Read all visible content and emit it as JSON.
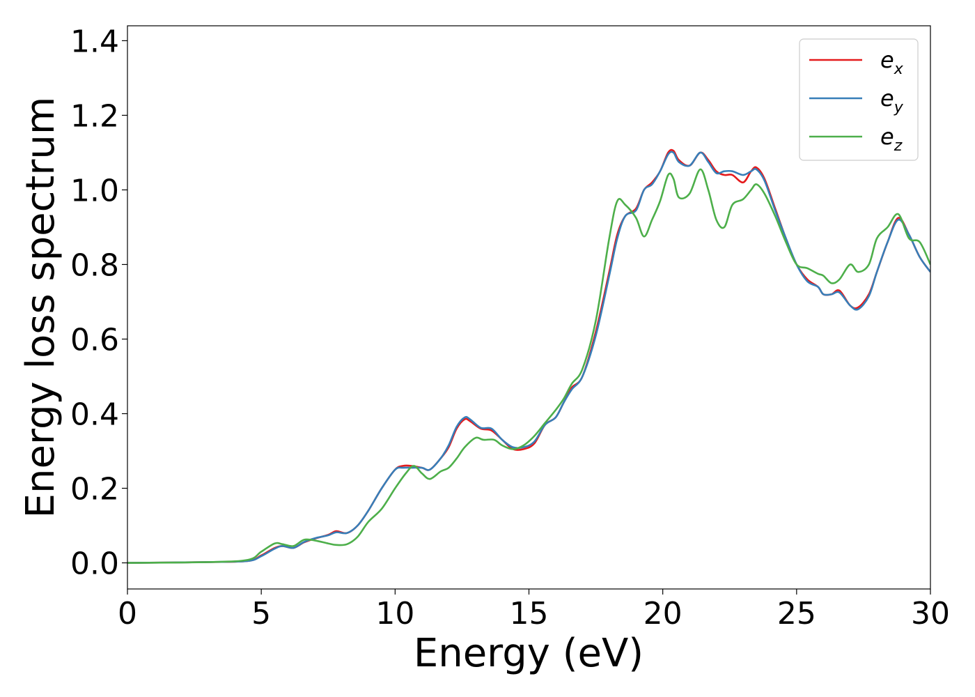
{
  "chart_data": {
    "type": "line",
    "title": "",
    "xlabel": "Energy (eV)",
    "ylabel": "Energy loss spectrum",
    "xlim": [
      0,
      30
    ],
    "ylim": [
      -0.07,
      1.44
    ],
    "xticks": [
      0,
      5,
      10,
      15,
      20,
      25,
      30
    ],
    "xtick_labels": [
      "0",
      "5",
      "10",
      "15",
      "20",
      "25",
      "30"
    ],
    "yticks": [
      0.0,
      0.2,
      0.4,
      0.6,
      0.8,
      1.0,
      1.2,
      1.4
    ],
    "ytick_labels": [
      "0.0",
      "0.2",
      "0.4",
      "0.6",
      "0.8",
      "1.0",
      "1.2",
      "1.4"
    ],
    "grid": false,
    "legend_position": "top-right",
    "series": [
      {
        "name": "e",
        "subscript": "x",
        "color": "#e41a1c",
        "x": [
          0,
          3,
          4.5,
          5.0,
          5.5,
          5.8,
          6.2,
          6.6,
          7.0,
          7.5,
          7.8,
          8.2,
          8.6,
          9.0,
          9.5,
          10.0,
          10.3,
          10.6,
          11.0,
          11.3,
          11.7,
          12.0,
          12.3,
          12.6,
          12.8,
          13.2,
          13.6,
          14.0,
          14.4,
          14.8,
          15.2,
          15.6,
          16.0,
          16.3,
          16.6,
          17.0,
          17.5,
          18.0,
          18.3,
          18.6,
          19.0,
          19.3,
          19.6,
          19.9,
          20.2,
          20.4,
          20.6,
          21.0,
          21.4,
          21.7,
          22.0,
          22.3,
          22.6,
          23.0,
          23.3,
          23.5,
          23.8,
          24.2,
          24.6,
          25.0,
          25.4,
          25.8,
          26.0,
          26.3,
          26.6,
          27.0,
          27.3,
          27.7,
          28.0,
          28.4,
          28.8,
          29.2,
          29.6,
          30.0
        ],
        "values": [
          0.0,
          0.002,
          0.005,
          0.02,
          0.04,
          0.045,
          0.04,
          0.055,
          0.065,
          0.075,
          0.085,
          0.08,
          0.1,
          0.14,
          0.2,
          0.25,
          0.26,
          0.26,
          0.255,
          0.25,
          0.28,
          0.31,
          0.36,
          0.385,
          0.38,
          0.36,
          0.355,
          0.33,
          0.305,
          0.305,
          0.32,
          0.37,
          0.39,
          0.43,
          0.47,
          0.5,
          0.62,
          0.78,
          0.88,
          0.93,
          0.95,
          1.0,
          1.02,
          1.05,
          1.1,
          1.105,
          1.08,
          1.065,
          1.1,
          1.08,
          1.05,
          1.04,
          1.04,
          1.02,
          1.05,
          1.06,
          1.03,
          0.95,
          0.87,
          0.8,
          0.76,
          0.74,
          0.72,
          0.72,
          0.73,
          0.69,
          0.685,
          0.72,
          0.78,
          0.86,
          0.925,
          0.88,
          0.82,
          0.78
        ]
      },
      {
        "name": "e",
        "subscript": "y",
        "color": "#377eb8",
        "x": [
          0,
          3,
          4.5,
          5.0,
          5.5,
          5.8,
          6.2,
          6.6,
          7.0,
          7.5,
          7.8,
          8.2,
          8.6,
          9.0,
          9.5,
          10.0,
          10.3,
          10.6,
          11.0,
          11.3,
          11.7,
          12.0,
          12.3,
          12.6,
          12.8,
          13.2,
          13.6,
          14.0,
          14.4,
          14.8,
          15.2,
          15.6,
          16.0,
          16.3,
          16.6,
          17.0,
          17.5,
          18.0,
          18.3,
          18.6,
          19.0,
          19.3,
          19.6,
          19.9,
          20.2,
          20.4,
          20.6,
          21.0,
          21.4,
          21.7,
          22.0,
          22.3,
          22.6,
          23.0,
          23.3,
          23.5,
          23.8,
          24.2,
          24.6,
          25.0,
          25.4,
          25.8,
          26.0,
          26.3,
          26.6,
          27.0,
          27.3,
          27.7,
          28.0,
          28.4,
          28.8,
          29.2,
          29.6,
          30.0
        ],
        "values": [
          0.0,
          0.002,
          0.005,
          0.018,
          0.038,
          0.045,
          0.04,
          0.056,
          0.066,
          0.074,
          0.082,
          0.08,
          0.1,
          0.14,
          0.2,
          0.25,
          0.255,
          0.255,
          0.255,
          0.25,
          0.28,
          0.315,
          0.365,
          0.39,
          0.385,
          0.362,
          0.36,
          0.33,
          0.31,
          0.31,
          0.325,
          0.37,
          0.39,
          0.43,
          0.465,
          0.5,
          0.61,
          0.77,
          0.87,
          0.93,
          0.945,
          1.0,
          1.015,
          1.05,
          1.095,
          1.1,
          1.075,
          1.065,
          1.1,
          1.075,
          1.045,
          1.05,
          1.05,
          1.04,
          1.05,
          1.055,
          1.025,
          0.945,
          0.87,
          0.8,
          0.755,
          0.74,
          0.72,
          0.72,
          0.725,
          0.69,
          0.68,
          0.715,
          0.78,
          0.86,
          0.92,
          0.88,
          0.82,
          0.78
        ]
      },
      {
        "name": "e",
        "subscript": "z",
        "color": "#4daf4a",
        "x": [
          0,
          3,
          4.5,
          5.0,
          5.5,
          5.8,
          6.2,
          6.6,
          7.0,
          7.5,
          7.8,
          8.2,
          8.6,
          9.0,
          9.5,
          10.0,
          10.4,
          10.7,
          11.0,
          11.3,
          11.7,
          12.0,
          12.3,
          12.6,
          13.0,
          13.3,
          13.7,
          14.0,
          14.4,
          14.8,
          15.2,
          15.6,
          16.0,
          16.3,
          16.6,
          17.0,
          17.5,
          18.0,
          18.3,
          18.6,
          19.0,
          19.3,
          19.6,
          19.9,
          20.2,
          20.4,
          20.6,
          21.0,
          21.4,
          21.7,
          22.0,
          22.3,
          22.6,
          23.0,
          23.3,
          23.5,
          23.8,
          24.2,
          24.6,
          25.0,
          25.4,
          25.8,
          26.0,
          26.3,
          26.6,
          27.0,
          27.3,
          27.7,
          28.0,
          28.4,
          28.8,
          29.2,
          29.6,
          30.0
        ],
        "values": [
          0.0,
          0.002,
          0.008,
          0.03,
          0.052,
          0.05,
          0.045,
          0.062,
          0.06,
          0.052,
          0.048,
          0.05,
          0.07,
          0.11,
          0.145,
          0.2,
          0.24,
          0.26,
          0.24,
          0.225,
          0.245,
          0.255,
          0.28,
          0.31,
          0.335,
          0.33,
          0.33,
          0.315,
          0.305,
          0.315,
          0.34,
          0.375,
          0.41,
          0.44,
          0.48,
          0.52,
          0.65,
          0.87,
          0.97,
          0.96,
          0.925,
          0.875,
          0.92,
          0.97,
          1.04,
          1.03,
          0.98,
          0.99,
          1.055,
          1.0,
          0.92,
          0.9,
          0.96,
          0.975,
          1.0,
          1.015,
          0.99,
          0.93,
          0.86,
          0.8,
          0.79,
          0.775,
          0.77,
          0.75,
          0.76,
          0.8,
          0.78,
          0.8,
          0.87,
          0.9,
          0.935,
          0.87,
          0.86,
          0.8
        ]
      }
    ]
  }
}
